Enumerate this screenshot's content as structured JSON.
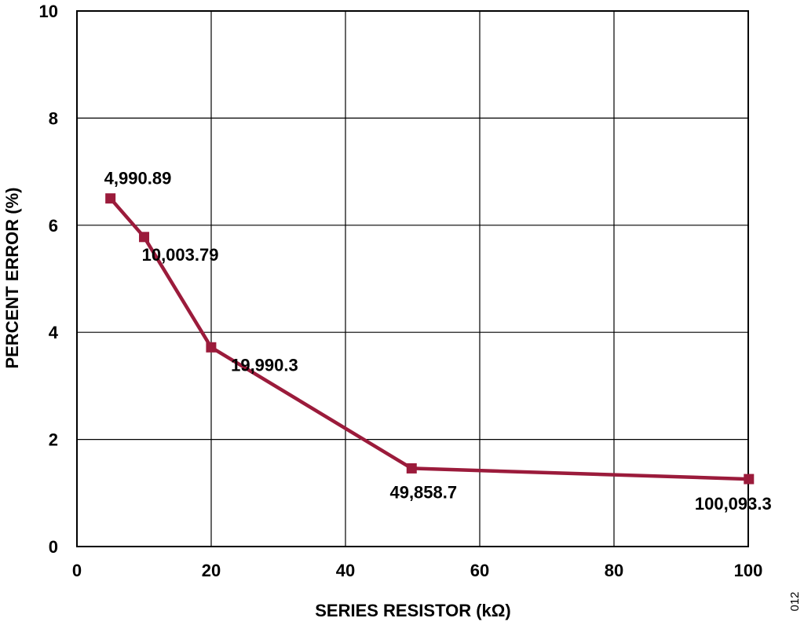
{
  "figure_id": "012",
  "colors": {
    "series": "#9b1b3b",
    "grid": "#000000",
    "axis": "#000000"
  },
  "chart_data": {
    "type": "line",
    "title": "",
    "xlabel": "SERIES RESISTOR (kΩ)",
    "ylabel": "PERCENT ERROR (%)",
    "xlim": [
      0,
      100
    ],
    "ylim": [
      0,
      10
    ],
    "xticks": [
      0,
      20,
      40,
      60,
      80,
      100
    ],
    "yticks": [
      0,
      2,
      4,
      6,
      8,
      10
    ],
    "grid": true,
    "legend": "none",
    "series": [
      {
        "marker": "square",
        "x": [
          4.99089,
          10.00379,
          19.9903,
          49.8587,
          100.0933
        ],
        "y": [
          6.5,
          5.78,
          3.72,
          1.46,
          1.26
        ],
        "labels": [
          "4,990.89",
          "10,003.79",
          "19,990.3",
          "49,858.7",
          "100,093.3"
        ]
      }
    ]
  }
}
